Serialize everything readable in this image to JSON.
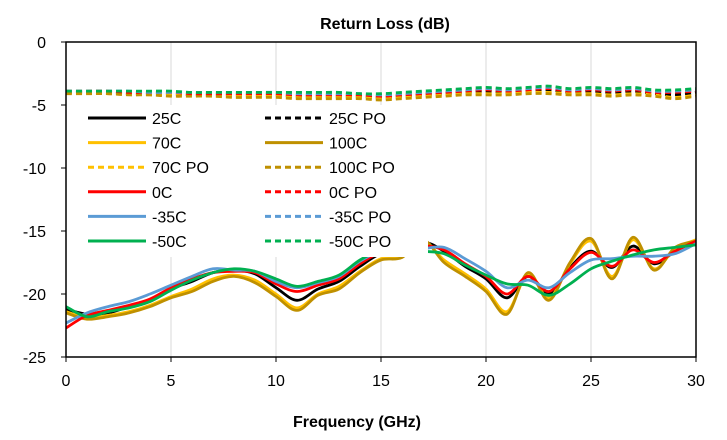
{
  "chart_data": {
    "type": "line",
    "title": "Return Loss (dB)",
    "xlabel": "Frequency  (GHz)",
    "ylabel": "",
    "xlim": [
      0,
      30
    ],
    "ylim": [
      -25,
      0
    ],
    "x_ticks": [
      0,
      5,
      10,
      15,
      20,
      25,
      30
    ],
    "y_ticks": [
      0,
      -5,
      -10,
      -15,
      -20,
      -25
    ],
    "grid": "vertical",
    "legend_position": "inside-left",
    "x": [
      0,
      1,
      2,
      3,
      4,
      5,
      6,
      7,
      8,
      9,
      10,
      11,
      12,
      13,
      14,
      15,
      16,
      17,
      18,
      19,
      20,
      21,
      22,
      23,
      24,
      25,
      26,
      27,
      28,
      29,
      30
    ],
    "series": [
      {
        "name": "25C",
        "color": "#000000",
        "dash": "solid",
        "values": [
          -21.2,
          -21.6,
          -21.5,
          -21.0,
          -20.5,
          -19.6,
          -19.0,
          -18.3,
          -18.1,
          -18.4,
          -19.5,
          -20.5,
          -19.6,
          -19.0,
          -17.8,
          -16.8,
          -16.7,
          -15.9,
          -16.6,
          -17.8,
          -18.8,
          -20.3,
          -18.6,
          -20.0,
          -17.9,
          -16.6,
          -17.9,
          -16.2,
          -17.6,
          -16.6,
          -15.7
        ]
      },
      {
        "name": "25C PO",
        "color": "#000000",
        "dash": "dashed",
        "values": [
          -4.0,
          -4.0,
          -4.0,
          -4.1,
          -4.1,
          -4.1,
          -4.2,
          -4.2,
          -4.2,
          -4.2,
          -4.2,
          -4.3,
          -4.3,
          -4.3,
          -4.3,
          -4.4,
          -4.3,
          -4.2,
          -4.1,
          -4.0,
          -3.9,
          -4.0,
          -3.9,
          -3.8,
          -4.0,
          -3.9,
          -4.0,
          -3.9,
          -4.1,
          -4.2,
          -4.0
        ]
      },
      {
        "name": "70C",
        "color": "#FFC000",
        "dash": "solid",
        "values": [
          -21.4,
          -21.9,
          -21.7,
          -21.4,
          -20.9,
          -20.2,
          -19.6,
          -18.8,
          -18.5,
          -18.9,
          -20.0,
          -21.1,
          -20.0,
          -19.4,
          -18.2,
          -17.2,
          -17.0,
          -15.8,
          -17.3,
          -18.4,
          -19.6,
          -21.4,
          -18.4,
          -20.3,
          -17.6,
          -15.8,
          -18.6,
          -15.7,
          -18.0,
          -16.4,
          -15.7
        ]
      },
      {
        "name": "100C",
        "color": "#BF9000",
        "dash": "solid",
        "values": [
          -21.5,
          -22.0,
          -21.8,
          -21.5,
          -21.0,
          -20.3,
          -19.8,
          -19.0,
          -18.6,
          -19.1,
          -20.2,
          -21.3,
          -20.1,
          -19.6,
          -18.3,
          -17.3,
          -17.1,
          -15.7,
          -17.5,
          -18.6,
          -19.8,
          -21.6,
          -18.3,
          -20.5,
          -17.5,
          -15.6,
          -18.8,
          -15.5,
          -18.1,
          -16.3,
          -15.8
        ]
      },
      {
        "name": "70C PO",
        "color": "#FFC000",
        "dash": "dashed",
        "values": [
          -4.0,
          -4.0,
          -4.1,
          -4.1,
          -4.2,
          -4.2,
          -4.2,
          -4.3,
          -4.3,
          -4.3,
          -4.3,
          -4.4,
          -4.4,
          -4.4,
          -4.4,
          -4.5,
          -4.4,
          -4.3,
          -4.2,
          -4.1,
          -4.1,
          -4.1,
          -4.0,
          -4.0,
          -4.1,
          -4.1,
          -4.2,
          -4.1,
          -4.2,
          -4.4,
          -4.2
        ]
      },
      {
        "name": "100C PO",
        "color": "#BF9000",
        "dash": "dashed",
        "values": [
          -4.1,
          -4.1,
          -4.1,
          -4.2,
          -4.2,
          -4.3,
          -4.3,
          -4.3,
          -4.4,
          -4.4,
          -4.4,
          -4.5,
          -4.5,
          -4.5,
          -4.5,
          -4.6,
          -4.5,
          -4.4,
          -4.3,
          -4.2,
          -4.2,
          -4.2,
          -4.1,
          -4.1,
          -4.2,
          -4.2,
          -4.3,
          -4.2,
          -4.3,
          -4.5,
          -4.3
        ]
      },
      {
        "name": "0C",
        "color": "#FF0000",
        "dash": "solid",
        "values": [
          -22.7,
          -21.7,
          -21.3,
          -20.9,
          -20.4,
          -19.5,
          -18.8,
          -18.3,
          -18.2,
          -18.3,
          -19.2,
          -19.8,
          -19.3,
          -18.8,
          -17.6,
          -16.7,
          -16.6,
          -16.2,
          -16.5,
          -17.6,
          -18.6,
          -20.0,
          -18.6,
          -19.8,
          -18.0,
          -16.7,
          -17.8,
          -16.5,
          -17.5,
          -16.6,
          -15.8
        ]
      },
      {
        "name": "0C PO",
        "color": "#FF0000",
        "dash": "dashed",
        "values": [
          -3.9,
          -3.9,
          -3.9,
          -4.0,
          -4.0,
          -4.0,
          -4.1,
          -4.1,
          -4.1,
          -4.1,
          -4.1,
          -4.2,
          -4.2,
          -4.2,
          -4.2,
          -4.3,
          -4.2,
          -4.1,
          -4.0,
          -3.9,
          -3.8,
          -3.9,
          -3.8,
          -3.7,
          -3.9,
          -3.8,
          -3.9,
          -3.8,
          -4.0,
          -4.0,
          -3.9
        ]
      },
      {
        "name": "-35C",
        "color": "#5B9BD5",
        "dash": "solid",
        "values": [
          -22.3,
          -21.5,
          -21.0,
          -20.6,
          -20.0,
          -19.3,
          -18.6,
          -18.0,
          -18.1,
          -18.2,
          -19.0,
          -19.5,
          -19.1,
          -18.6,
          -17.4,
          -16.6,
          -16.5,
          -16.4,
          -16.3,
          -17.2,
          -18.2,
          -19.5,
          -18.9,
          -19.5,
          -18.3,
          -17.3,
          -17.2,
          -17.0,
          -17.0,
          -16.8,
          -16.0
        ]
      },
      {
        "name": "-35C PO",
        "color": "#5B9BD5",
        "dash": "dashed",
        "values": [
          -3.9,
          -3.9,
          -3.9,
          -3.9,
          -4.0,
          -4.0,
          -4.0,
          -4.0,
          -4.0,
          -4.0,
          -4.0,
          -4.1,
          -4.1,
          -4.1,
          -4.1,
          -4.2,
          -4.1,
          -4.0,
          -3.9,
          -3.8,
          -3.7,
          -3.8,
          -3.7,
          -3.6,
          -3.8,
          -3.7,
          -3.8,
          -3.7,
          -3.9,
          -3.9,
          -3.8
        ]
      },
      {
        "name": "-50C",
        "color": "#00B050",
        "dash": "solid",
        "values": [
          -21.0,
          -21.8,
          -21.4,
          -21.1,
          -20.6,
          -19.7,
          -18.9,
          -18.3,
          -18.0,
          -18.2,
          -18.8,
          -19.4,
          -19.0,
          -18.5,
          -17.3,
          -16.5,
          -16.4,
          -16.6,
          -16.8,
          -17.7,
          -18.5,
          -19.2,
          -19.3,
          -20.1,
          -19.2,
          -18.0,
          -17.4,
          -16.9,
          -16.5,
          -16.3,
          -16.1
        ]
      },
      {
        "name": "-50C PO",
        "color": "#00B050",
        "dash": "dashed",
        "values": [
          -3.9,
          -3.9,
          -3.9,
          -3.9,
          -3.9,
          -3.9,
          -4.0,
          -4.0,
          -4.0,
          -4.0,
          -4.0,
          -4.0,
          -4.0,
          -4.0,
          -4.1,
          -4.1,
          -4.0,
          -3.9,
          -3.8,
          -3.7,
          -3.6,
          -3.7,
          -3.6,
          -3.5,
          -3.7,
          -3.6,
          -3.7,
          -3.6,
          -3.8,
          -3.8,
          -3.7
        ]
      }
    ]
  }
}
